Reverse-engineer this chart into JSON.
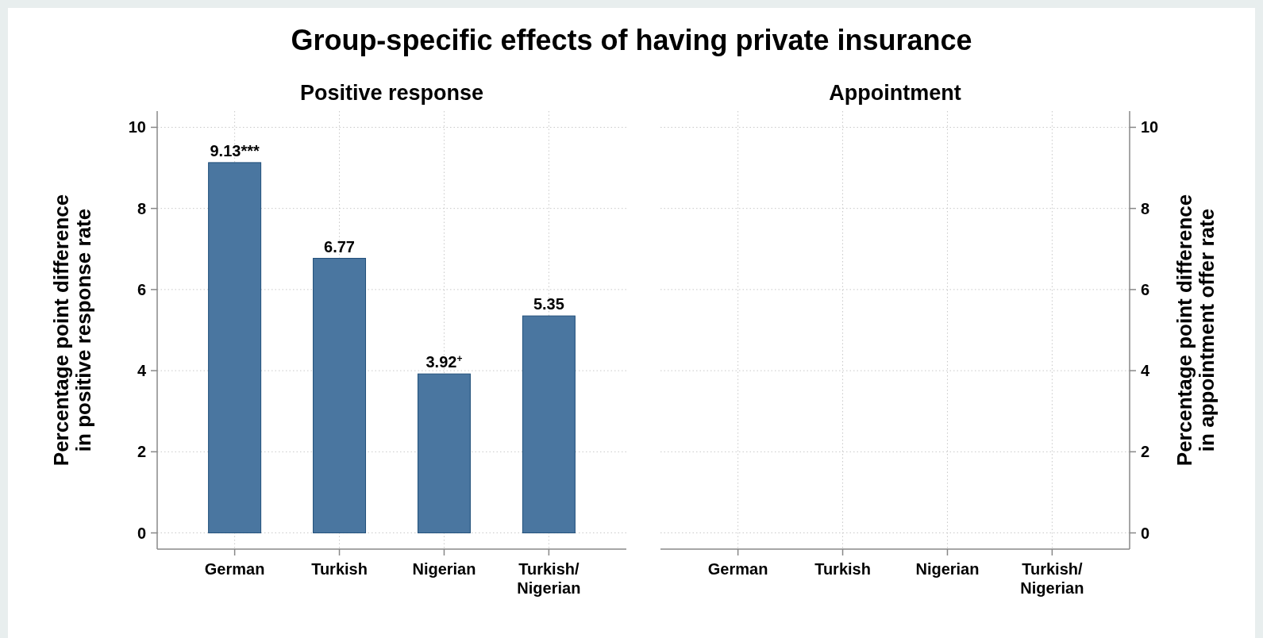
{
  "chart_data": [
    {
      "type": "bar",
      "title": "Group-specific effects of having private insurance",
      "subtitle": "Positive response",
      "ylabel": "Percentage point difference\nin positive response rate",
      "categories": [
        "German",
        "Turkish",
        "Nigerian",
        "Turkish/\nNigerian"
      ],
      "ylim": [
        -0.4,
        10.4
      ],
      "yticks": [
        0,
        2,
        4,
        6,
        8,
        10
      ],
      "grid": true,
      "series": [
        {
          "color": "#4a76a0",
          "values": [
            9.13,
            6.77,
            3.92,
            5.35
          ],
          "value_labels": [
            "9.13***",
            "6.77",
            "3.92$^{+}$",
            "5.35"
          ]
        }
      ]
    },
    {
      "type": "bar",
      "subtitle": "Appointment",
      "y2label": "Percentage point difference\nin appointment offer rate",
      "categories": [
        "German",
        "Turkish",
        "Nigerian",
        "Turkish/\nNigerian"
      ],
      "y2lim": [
        -0.4,
        10.4
      ],
      "y2ticks": [
        0,
        2,
        4,
        6,
        8,
        10
      ],
      "grid": true,
      "series": [
        {
          "values": [
            null,
            null,
            null,
            null
          ]
        }
      ]
    }
  ]
}
